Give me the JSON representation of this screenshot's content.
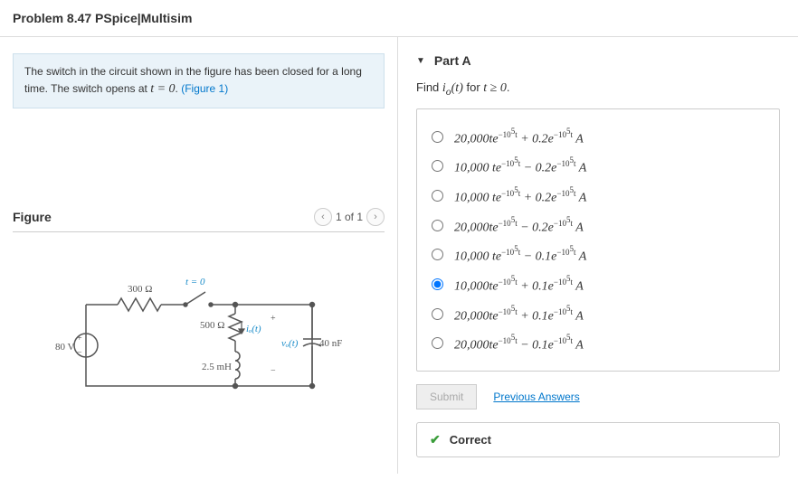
{
  "header": {
    "title": "Problem 8.47 PSpice|Multisim"
  },
  "problem": {
    "text_a": "The switch in the circuit shown in the figure has been closed for a long time. The switch opens at ",
    "eq": "t = 0",
    "text_b": ". ",
    "fig_link": "(Figure 1)"
  },
  "figure": {
    "heading": "Figure",
    "nav_text": "1 of 1",
    "circuit": {
      "vsrc": "80 V",
      "r1": "300 Ω",
      "r2": "500 Ω",
      "l": "2.5 mH",
      "c": "40 nF",
      "sw_label": "t = 0",
      "i_label": "iₒ(t)",
      "v_label": "vₒ(t)",
      "plus": "+",
      "minus": "−"
    }
  },
  "part": {
    "label": "Part A",
    "instruction_a": "Find ",
    "instruction_b": " for ",
    "instruction_c": "."
  },
  "options": [
    {
      "expr": "20,000te<sup>−10<sup>5</sup>t</sup> + 0.2e<sup>−10<sup>5</sup>t</sup>  A",
      "selected": false
    },
    {
      "expr": "10,000 te<sup>−10<sup>5</sup>t</sup> − 0.2e<sup>−10<sup>5</sup>t</sup>  A",
      "selected": false
    },
    {
      "expr": "10,000 te<sup>−10<sup>5</sup>t</sup> + 0.2e<sup>−10<sup>5</sup>t</sup>  A",
      "selected": false
    },
    {
      "expr": "20,000te<sup>−10<sup>5</sup>t</sup> − 0.2e<sup>−10<sup>5</sup>t</sup>  A",
      "selected": false
    },
    {
      "expr": "10,000 te<sup>−10<sup>5</sup>t</sup> − 0.1e<sup>−10<sup>5</sup>t</sup>  A",
      "selected": false
    },
    {
      "expr": "10,000te<sup>−10<sup>5</sup>t</sup> + 0.1e<sup>−10<sup>5</sup>t</sup>  A",
      "selected": true
    },
    {
      "expr": "20,000te<sup>−10<sup>5</sup>t</sup> + 0.1e<sup>−10<sup>5</sup>t</sup>  A",
      "selected": false
    },
    {
      "expr": "20,000te<sup>−10<sup>5</sup>t</sup> − 0.1e<sup>−10<sup>5</sup>t</sup>  A",
      "selected": false
    }
  ],
  "submit": {
    "button": "Submit",
    "prev": "Previous Answers"
  },
  "feedback": {
    "text": "Correct"
  }
}
